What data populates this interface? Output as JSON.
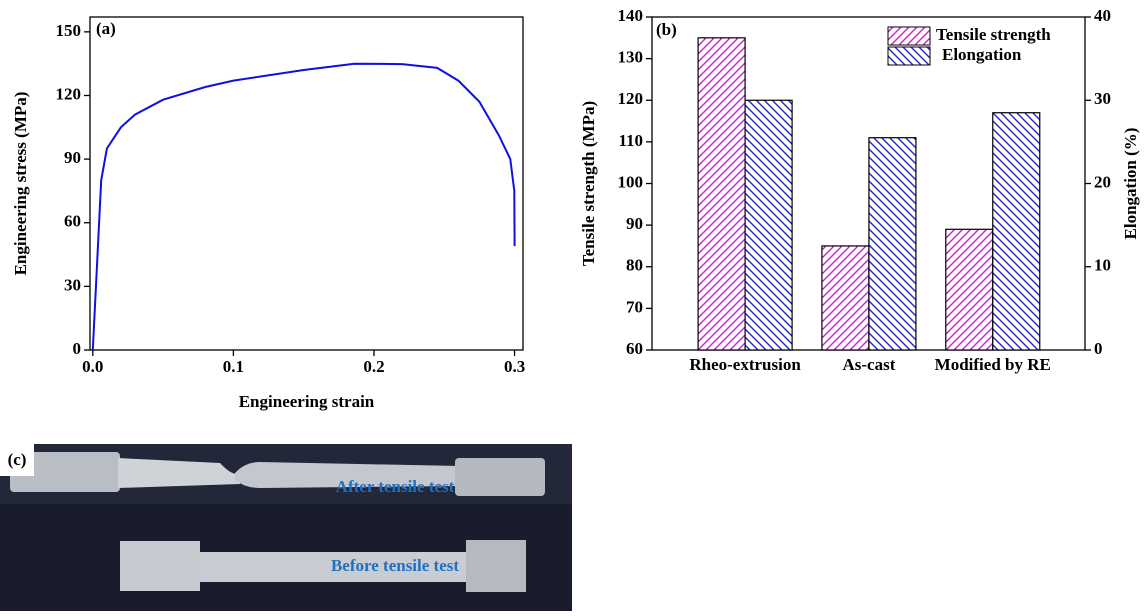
{
  "chart_data": [
    {
      "type": "line",
      "panel_label": "(a)",
      "x_label": "Engineering strain",
      "y_label": "Engineering stress (MPa)",
      "x": [
        0,
        0.003,
        0.006,
        0.01,
        0.02,
        0.03,
        0.05,
        0.08,
        0.1,
        0.15,
        0.186,
        0.22,
        0.245,
        0.26,
        0.275,
        0.289,
        0.297,
        0.2998,
        0.3
      ],
      "values": [
        0,
        40,
        80,
        95,
        105,
        111,
        118,
        124,
        127,
        132,
        135,
        134.8,
        133,
        127,
        117,
        101,
        90,
        75,
        49
      ],
      "color": "#1010e0",
      "xlim": [
        -0.002,
        0.306
      ],
      "ylim": [
        0,
        157
      ],
      "xticks": [
        {
          "value": 0,
          "label": "0.0"
        },
        0.1,
        0.2,
        0.3
      ],
      "yticks": [
        0,
        30,
        60,
        90,
        120,
        150
      ]
    },
    {
      "type": "bar",
      "panel_label": "(b)",
      "y_label": "Tensile strength (MPa)",
      "y2_label": "Elongation (%)",
      "categories": [
        "Rheo-extrusion",
        "As-cast",
        "Modified by RE"
      ],
      "series": [
        {
          "name": "Tensile strength",
          "color": "#cc22cc",
          "values": [
            135,
            85,
            89
          ]
        },
        {
          "name": "Elongation",
          "color": "#2222cc",
          "values": [
            30,
            25.5,
            28.5
          ],
          "axis": "y2"
        }
      ],
      "ylim": [
        60,
        140
      ],
      "yticks": [
        60,
        70,
        80,
        90,
        100,
        110,
        120,
        130,
        140
      ],
      "y2lim": [
        0,
        40
      ],
      "y2ticks": [
        0,
        10,
        20,
        30,
        40
      ],
      "legend": "top-right"
    }
  ],
  "photo": {
    "label": "(c)",
    "after": "After tensile test",
    "before": "Before tensile test"
  }
}
